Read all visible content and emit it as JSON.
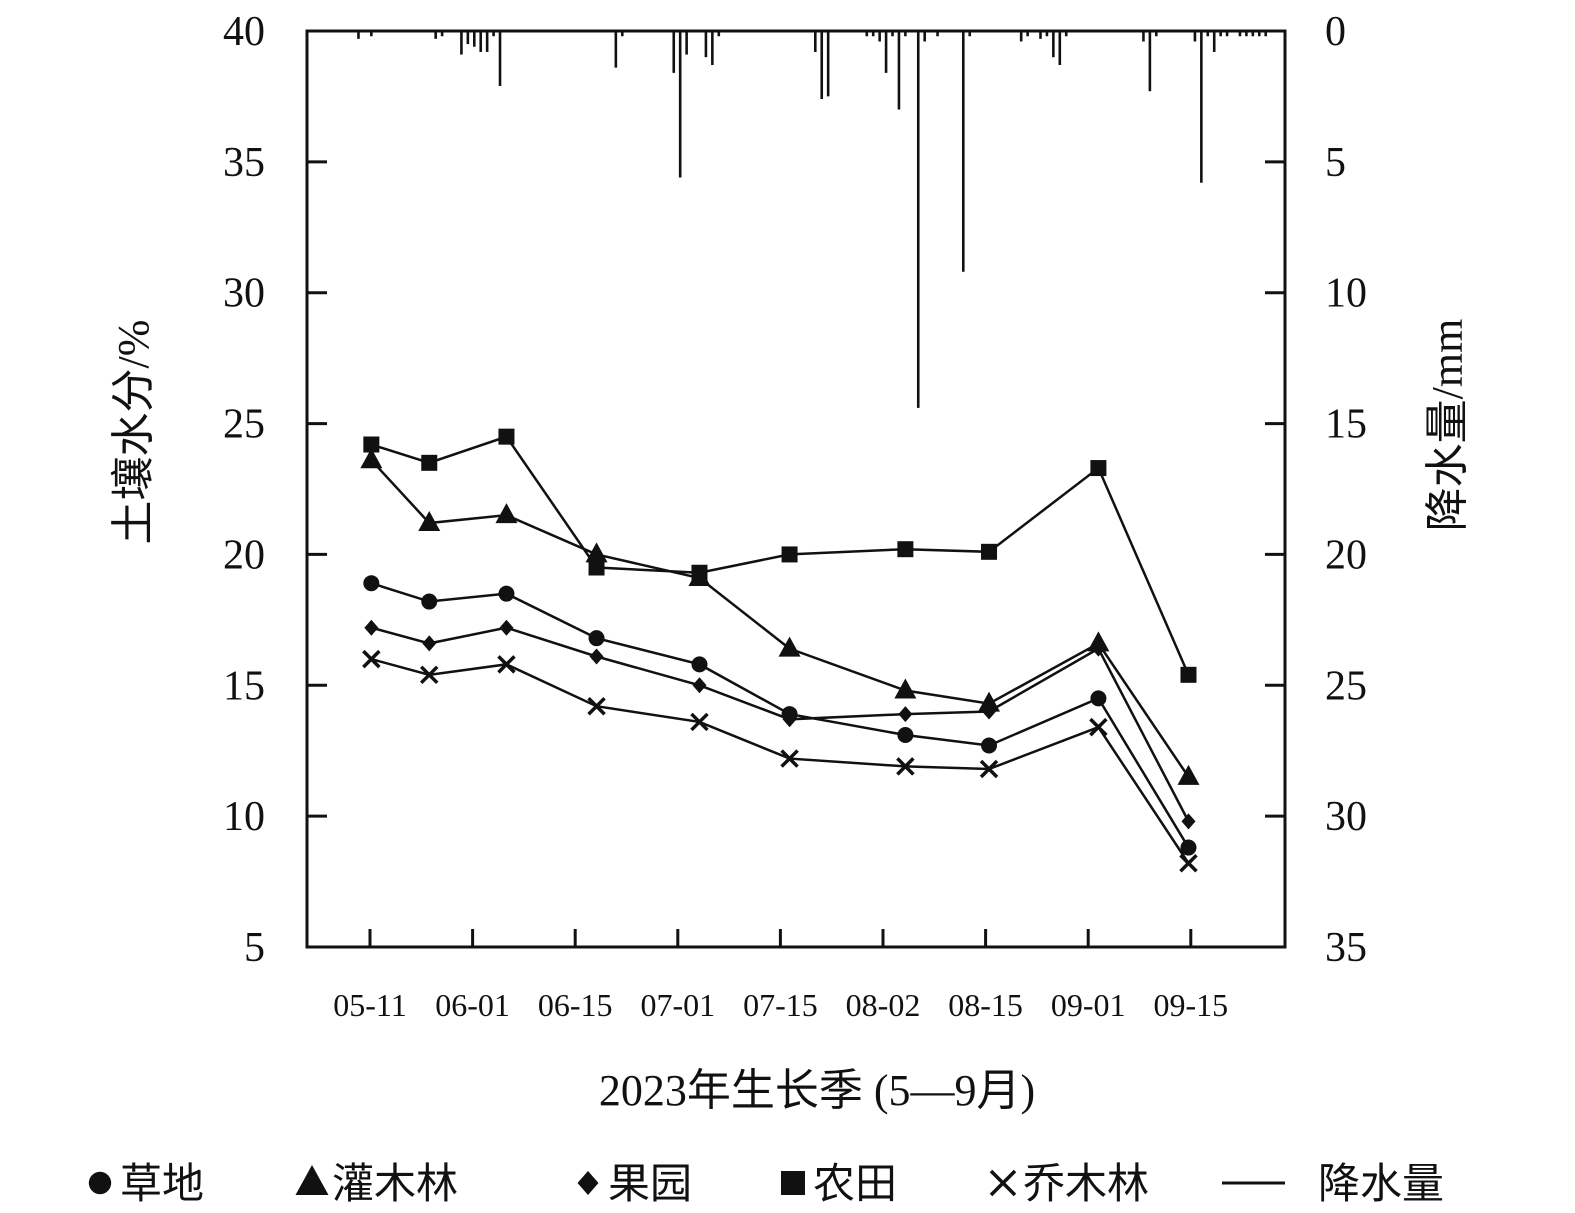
{
  "chart_data": {
    "type": "line",
    "xlabel": "2023年生长季 (5—9月)",
    "ylabel_left": "土壤水分/%",
    "ylabel_right": "降水量/mm",
    "ylim_left": [
      5,
      40
    ],
    "ylim_right": [
      0,
      35
    ],
    "right_axis_inverted": true,
    "yticks_left": [
      "5",
      "10",
      "15",
      "20",
      "25",
      "30",
      "35",
      "40"
    ],
    "yticks_right": [
      "35",
      "30",
      "25",
      "20",
      "15",
      "10",
      "5",
      "0"
    ],
    "xticks": [
      "05-11",
      "06-01",
      "06-15",
      "07-01",
      "07-15",
      "08-02",
      "08-15",
      "09-01",
      "09-15"
    ],
    "x_range": [
      "05-01",
      "09-30"
    ],
    "grid": false,
    "legend_position": "bottom",
    "x": [
      "05-11",
      "05-20",
      "06-01",
      "06-15",
      "07-01",
      "07-15",
      "08-02",
      "08-15",
      "09-01",
      "09-15"
    ],
    "series": [
      {
        "name": "草地",
        "marker": "circle",
        "values": [
          18.9,
          18.2,
          18.5,
          16.8,
          15.8,
          13.9,
          13.1,
          12.7,
          14.5,
          8.8
        ]
      },
      {
        "name": "灌木林",
        "marker": "triangle",
        "values": [
          23.6,
          21.2,
          21.5,
          20.0,
          19.1,
          16.4,
          14.8,
          14.3,
          16.6,
          11.5
        ]
      },
      {
        "name": "果园",
        "marker": "diamond",
        "values": [
          17.2,
          16.6,
          17.2,
          16.1,
          15.0,
          13.7,
          13.9,
          14.0,
          16.4,
          9.8
        ]
      },
      {
        "name": "农田",
        "marker": "square",
        "values": [
          24.2,
          23.5,
          24.5,
          19.5,
          19.3,
          20.0,
          20.2,
          20.1,
          23.3,
          15.4
        ]
      },
      {
        "name": "乔木林",
        "marker": "x",
        "values": [
          16.0,
          15.4,
          15.8,
          14.2,
          13.6,
          12.2,
          11.9,
          11.8,
          13.4,
          8.2
        ]
      }
    ],
    "precipitation": {
      "name": "降水量",
      "dates": [
        "05-09",
        "05-11",
        "05-21",
        "05-22",
        "05-25",
        "05-26",
        "05-27",
        "05-28",
        "05-29",
        "05-30",
        "05-31",
        "06-18",
        "06-19",
        "06-27",
        "06-28",
        "06-29",
        "07-02",
        "07-03",
        "07-04",
        "07-19",
        "07-20",
        "07-21",
        "07-27",
        "07-28",
        "07-29",
        "07-30",
        "07-31",
        "08-01",
        "08-02",
        "08-04",
        "08-05",
        "08-07",
        "08-11",
        "08-12",
        "08-20",
        "08-21",
        "08-23",
        "08-24",
        "08-25",
        "08-26",
        "08-27",
        "09-08",
        "09-09",
        "09-10",
        "09-16",
        "09-17",
        "09-18",
        "09-19",
        "09-20",
        "09-21",
        "09-23",
        "09-24",
        "09-25",
        "09-26",
        "09-27"
      ],
      "values": [
        0.3,
        0.2,
        0.3,
        0.2,
        0.9,
        0.5,
        0.6,
        0.8,
        0.8,
        0.2,
        2.1,
        1.4,
        0.2,
        1.6,
        5.6,
        0.9,
        1.0,
        1.3,
        0.2,
        0.8,
        2.6,
        2.5,
        0.2,
        0.2,
        0.4,
        1.6,
        0.2,
        3.0,
        0.2,
        14.4,
        0.4,
        0.2,
        9.2,
        0.2,
        0.4,
        0.2,
        0.3,
        0.2,
        1.0,
        1.3,
        0.2,
        0.4,
        2.3,
        0.2,
        0.4,
        5.8,
        0.2,
        0.8,
        0.2,
        0.2,
        0.2,
        0.2,
        0.2,
        0.2,
        0.2
      ]
    }
  }
}
